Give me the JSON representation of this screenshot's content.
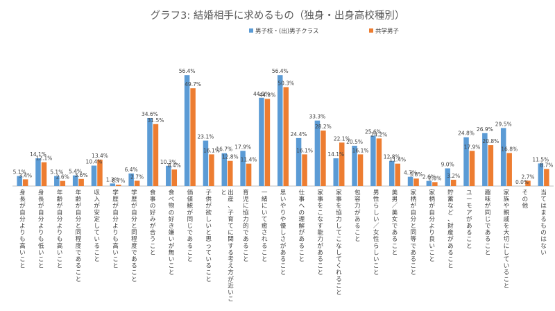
{
  "chart_data": {
    "type": "bar",
    "title": "グラフ3: 結婚相手に求めるもの（独身・出身高校種別）",
    "legend_position": "top-right",
    "grid": false,
    "ylim": [
      0,
      60
    ],
    "xlabel": "",
    "ylabel": "",
    "categories": [
      "身長が自分よりも高いこと",
      "身長が自分よりも低いこと",
      "年齢が自分よりも高いこと",
      "年齢が自分と同程度であること",
      "収入が安定していること",
      "学歴が自分よりも高いこと",
      "学歴が自分と同程度であること",
      "食事の好みが合うこと",
      "食べ物の好き嫌いが無いこと",
      "価値観が同じであること",
      "子供が欲しいと思っていること",
      "出産、子育てに関する考え方が近いこと",
      "育児に協力的であること",
      "一緒にいて癒されること",
      "思いやりや優しさがあること",
      "仕事への理解があること",
      "家事をこなす能力があること",
      "家事を協力してこなしてくれること",
      "包容力があること",
      "男性らしい／女性らしいこと",
      "美男／美女であること",
      "家柄が自分と同等であること",
      "家柄が自分より良いこと",
      "貯蓄など、財産があること",
      "ユーモアがあること",
      "趣味が同じであること",
      "家族や親戚を大切にしていること",
      "その他",
      "当てはまるものはない"
    ],
    "series": [
      {
        "name": "男子校・(出)男子クラス",
        "color": "#5B9BD5",
        "values": [
          5.1,
          14.1,
          5.1,
          5.4,
          10.4,
          1.3,
          6.4,
          34.6,
          10.3,
          56.4,
          23.1,
          16.7,
          17.9,
          44.9,
          56.4,
          24.4,
          33.3,
          14.1,
          20.5,
          25.6,
          12.8,
          4.7,
          2.6,
          9.0,
          24.8,
          26.9,
          29.5,
          0.0,
          11.5
        ],
        "labels": [
          "5.1%",
          "14.1%",
          "5.1%",
          "5.4%",
          "10.4%",
          "1.3%",
          "6.4%",
          "34.6%",
          "10.3%",
          "56.4%",
          "23.1%",
          "16.7%",
          "17.9%",
          "44.9%",
          "56.4%",
          "24.4%",
          "33.3%",
          "14.1%",
          "20.5%",
          "25.6%",
          "12.8%",
          "4.7%",
          "2.6%",
          "9.0%",
          "24.8%",
          "26.9%",
          "29.5%",
          "0.0%",
          "11.5%"
        ]
      },
      {
        "name": "共学男子",
        "color": "#ED7D31",
        "values": [
          3.4,
          12.1,
          2.6,
          3.6,
          13.4,
          0.7,
          2.7,
          31.5,
          8.4,
          49.7,
          16.1,
          12.8,
          11.4,
          44.3,
          50.3,
          16.1,
          28.2,
          22.1,
          16.1,
          24.2,
          11.4,
          3.8,
          2.0,
          3.2,
          17.9,
          20.8,
          16.8,
          2.7,
          8.7
        ],
        "labels": [
          "3.4%",
          "12.1%",
          "2.6%",
          "3.6%",
          "13.4%",
          "0.7%",
          "2.7%",
          "31.5%",
          "8.4%",
          "49.7%",
          "16.1%",
          "12.8%",
          "11.4%",
          "44.3%",
          "50.3%",
          "16.1%",
          "28.2%",
          "22.1%",
          "16.1%",
          "24.2%",
          "11.4%",
          "3.8%",
          "2.0%",
          "3.2%",
          "17.9%",
          "20.8%",
          "16.8%",
          "2.7%",
          "8.7%"
        ]
      }
    ]
  }
}
